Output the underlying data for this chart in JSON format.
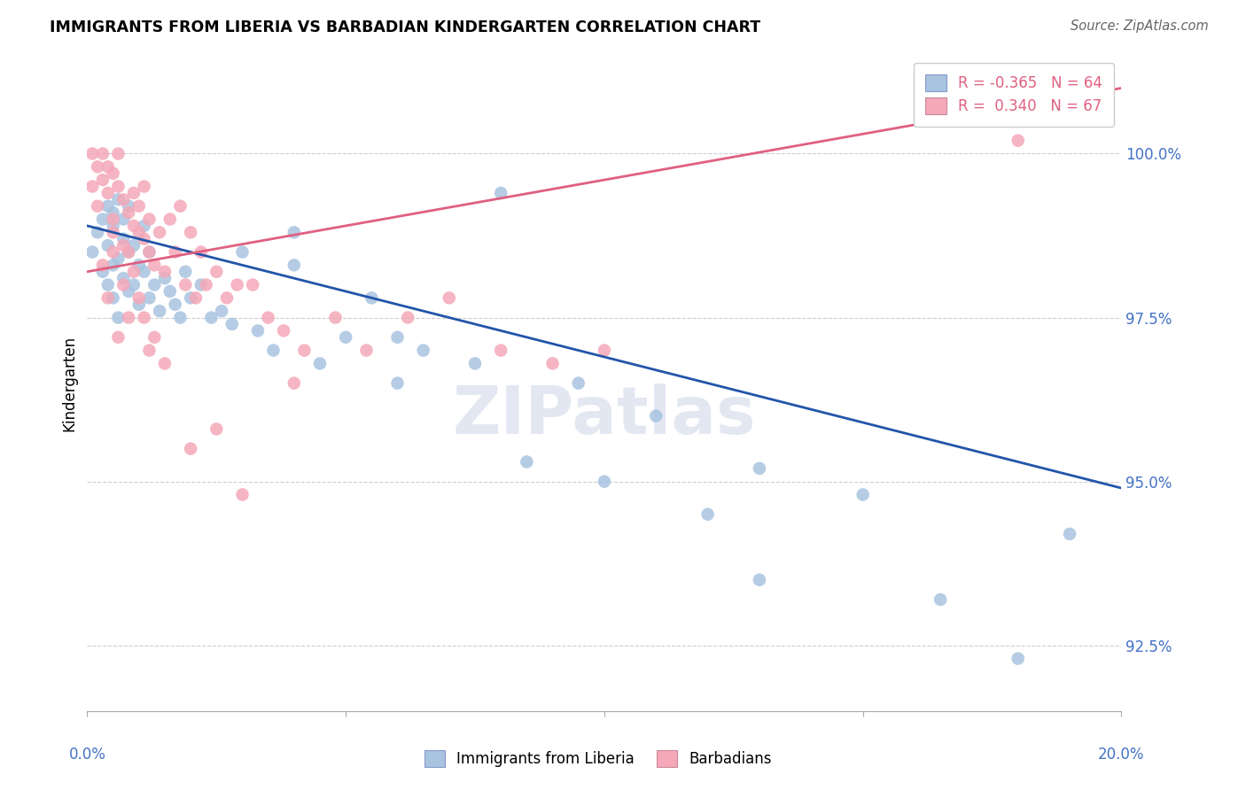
{
  "title": "IMMIGRANTS FROM LIBERIA VS BARBADIAN KINDERGARTEN CORRELATION CHART",
  "source": "Source: ZipAtlas.com",
  "ylabel": "Kindergarten",
  "yticks": [
    92.5,
    95.0,
    97.5,
    100.0
  ],
  "ytick_labels": [
    "92.5%",
    "95.0%",
    "97.5%",
    "100.0%"
  ],
  "xlim": [
    0.0,
    0.2
  ],
  "ylim": [
    91.5,
    101.5
  ],
  "blue_color": "#a8c4e0",
  "pink_color": "#f4a8b8",
  "blue_line_color": "#2255aa",
  "pink_line_color": "#e06080",
  "watermark": "ZIPatlas",
  "blue_scatter_x": [
    0.001,
    0.002,
    0.003,
    0.003,
    0.004,
    0.004,
    0.004,
    0.005,
    0.005,
    0.005,
    0.005,
    0.006,
    0.006,
    0.006,
    0.007,
    0.007,
    0.007,
    0.008,
    0.008,
    0.008,
    0.009,
    0.009,
    0.01,
    0.01,
    0.011,
    0.011,
    0.012,
    0.012,
    0.013,
    0.014,
    0.015,
    0.016,
    0.017,
    0.018,
    0.019,
    0.02,
    0.022,
    0.024,
    0.026,
    0.028,
    0.03,
    0.033,
    0.036,
    0.04,
    0.045,
    0.05,
    0.055,
    0.06,
    0.065,
    0.075,
    0.085,
    0.095,
    0.1,
    0.11,
    0.12,
    0.13,
    0.15,
    0.165,
    0.18,
    0.19,
    0.08,
    0.04,
    0.06,
    0.13
  ],
  "blue_scatter_y": [
    98.5,
    98.8,
    98.2,
    99.0,
    98.6,
    99.2,
    98.0,
    98.3,
    99.1,
    97.8,
    98.9,
    98.4,
    99.3,
    97.5,
    98.7,
    99.0,
    98.1,
    98.5,
    97.9,
    99.2,
    98.0,
    98.6,
    98.3,
    97.7,
    98.9,
    98.2,
    98.5,
    97.8,
    98.0,
    97.6,
    98.1,
    97.9,
    97.7,
    97.5,
    98.2,
    97.8,
    98.0,
    97.5,
    97.6,
    97.4,
    98.5,
    97.3,
    97.0,
    98.3,
    96.8,
    97.2,
    97.8,
    96.5,
    97.0,
    96.8,
    95.3,
    96.5,
    95.0,
    96.0,
    94.5,
    93.5,
    94.8,
    93.2,
    92.3,
    94.2,
    99.4,
    98.8,
    97.2,
    95.2
  ],
  "pink_scatter_x": [
    0.001,
    0.001,
    0.002,
    0.002,
    0.003,
    0.003,
    0.004,
    0.004,
    0.005,
    0.005,
    0.005,
    0.006,
    0.006,
    0.007,
    0.007,
    0.008,
    0.008,
    0.009,
    0.009,
    0.01,
    0.01,
    0.011,
    0.011,
    0.012,
    0.012,
    0.013,
    0.014,
    0.015,
    0.016,
    0.017,
    0.018,
    0.019,
    0.02,
    0.021,
    0.022,
    0.023,
    0.025,
    0.027,
    0.029,
    0.032,
    0.035,
    0.038,
    0.042,
    0.048,
    0.054,
    0.062,
    0.07,
    0.08,
    0.09,
    0.1,
    0.003,
    0.004,
    0.005,
    0.006,
    0.007,
    0.008,
    0.009,
    0.01,
    0.011,
    0.012,
    0.013,
    0.015,
    0.02,
    0.025,
    0.03,
    0.18,
    0.04
  ],
  "pink_scatter_y": [
    99.5,
    100.0,
    99.8,
    99.2,
    99.6,
    100.0,
    99.4,
    99.8,
    99.0,
    99.7,
    98.8,
    99.5,
    100.0,
    99.3,
    98.6,
    99.1,
    98.5,
    98.9,
    99.4,
    98.8,
    99.2,
    98.7,
    99.5,
    98.5,
    99.0,
    98.3,
    98.8,
    98.2,
    99.0,
    98.5,
    99.2,
    98.0,
    98.8,
    97.8,
    98.5,
    98.0,
    98.2,
    97.8,
    98.0,
    98.0,
    97.5,
    97.3,
    97.0,
    97.5,
    97.0,
    97.5,
    97.8,
    97.0,
    96.8,
    97.0,
    98.3,
    97.8,
    98.5,
    97.2,
    98.0,
    97.5,
    98.2,
    97.8,
    97.5,
    97.0,
    97.2,
    96.8,
    95.5,
    95.8,
    94.8,
    100.2,
    96.5
  ],
  "blue_trend_x": [
    0.0,
    0.2
  ],
  "blue_trend_y": [
    98.9,
    94.9
  ],
  "pink_trend_x": [
    0.0,
    0.2
  ],
  "pink_trend_y": [
    98.2,
    101.0
  ]
}
